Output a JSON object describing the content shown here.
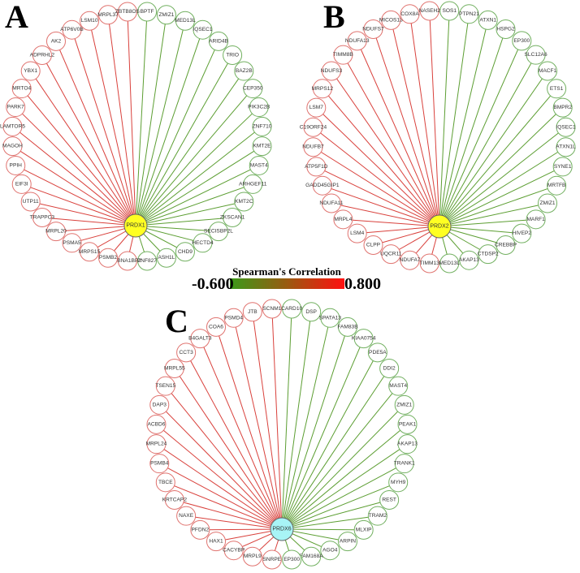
{
  "legend": {
    "title": "Spearman's Correlation",
    "min_label": "-0.600",
    "max_label": "0.800",
    "min_color": "#3a9a1a",
    "mid_color": "#9a5a10",
    "max_color": "#ff1010"
  },
  "colors": {
    "positive_edge": "#d9413c",
    "negative_edge": "#5c9e32",
    "positive_node_stroke": "#e0736f",
    "negative_node_stroke": "#72b060",
    "hub_yellow": "#ffff22",
    "hub_cyan": "#a8f4f6"
  },
  "panels": [
    {
      "letter": "A",
      "hub": {
        "label": "PRDX1",
        "fill": "yellow"
      },
      "negative": [
        "BPTF",
        "ZMIZ1",
        "MED13L",
        "IQSEC1",
        "ARID4B",
        "TRIO",
        "BAZ2B",
        "CEP350",
        "PIK3C2B",
        "ZNF710",
        "KMT2E",
        "MAST4",
        "ARHGEF11",
        "KMT2C",
        "ZKSCAN1",
        "SECISBP2L",
        "HECTD4",
        "CHD9",
        "ASH1L",
        "ZNF827"
      ],
      "positive": [
        "EBNA1BP2",
        "PSMB2",
        "MRPS15",
        "PSMA5",
        "MRPL20",
        "TRAPPC3",
        "UTP11",
        "EIF3I",
        "PPIH",
        "MAGOH",
        "LAMTOR5",
        "PARK7",
        "MRTO4",
        "YBX1",
        "ADPRHL2",
        "AK2",
        "ATP6V0B",
        "LSM10",
        "MRPL37",
        "ZBTB8OS"
      ]
    },
    {
      "letter": "B",
      "hub": {
        "label": "PRDX2",
        "fill": "yellow"
      },
      "negative": [
        "SOS1",
        "PTPN21",
        "ATXN1",
        "HSPG2",
        "EP300",
        "SLC12A6",
        "MACF1",
        "ETS1",
        "BMPR2",
        "IQSEC1",
        "ATXN1L",
        "SYNE1",
        "MRTFB",
        "ZMIZ1",
        "MARF1",
        "HIVEP2",
        "CREBBP",
        "CTDSP2",
        "AKAP13",
        "MED13L"
      ],
      "positive": [
        "TIMM13",
        "NDUFA7",
        "UQCR11",
        "CLPP",
        "LSM4",
        "MRPL4",
        "NDUFA11",
        "GADD45GIP1",
        "ATP5F1D",
        "NDUFB7",
        "C19ORF24",
        "LSM7",
        "MRPS12",
        "NDUFS3",
        "TIMM8B",
        "NDUFA13",
        "NDUFS7",
        "MICOS13",
        "COX8A",
        "NASEH2"
      ]
    },
    {
      "letter": "C",
      "hub": {
        "label": "PRDX6",
        "fill": "cyan"
      },
      "negative": [
        "CARD10",
        "DSP",
        "SPATA13",
        "FAM83B",
        "KIAA0754",
        "PDE5A",
        "DDI2",
        "MAST4",
        "ZMIZ1",
        "PEAK1",
        "AKAP13",
        "TRANK1",
        "MYH9",
        "REST",
        "TRAM2",
        "MLXIP",
        "ARPIN",
        "AGO4",
        "FAM168A",
        "EP300"
      ],
      "positive": [
        "SNRPE",
        "MRPL9",
        "CACYBP",
        "HAX1",
        "PFDN2",
        "NAXE",
        "KRTCAP2",
        "TBCE",
        "PSMB4",
        "MRPL24",
        "ACBD6",
        "DAP3",
        "TSEN15",
        "MRPL55",
        "CCT3",
        "B4GALT3",
        "COA6",
        "PSMD4",
        "JTB",
        "SCNM1"
      ]
    }
  ]
}
